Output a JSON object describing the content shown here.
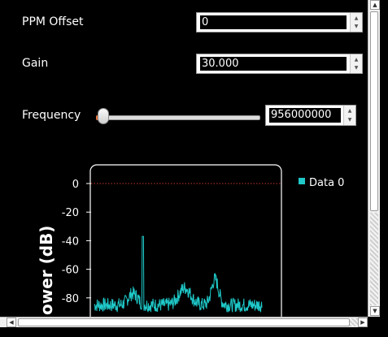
{
  "controls": {
    "ppm": {
      "label": "PPM Offset",
      "value": "0"
    },
    "gain": {
      "label": "Gain",
      "value": "30.000"
    },
    "frequency": {
      "label": "Frequency",
      "value": "956000000",
      "slider_position": 0.02
    }
  },
  "chart_data": {
    "type": "line",
    "title": "",
    "xlabel": "",
    "ylabel": "ower (dB)",
    "yticks": [
      0,
      -20,
      -40,
      -60,
      -80
    ],
    "ylim": [
      -92,
      10
    ],
    "reference_line": 0,
    "series": [
      {
        "name": "Data 0",
        "color": "#1fc9c9",
        "noise_floor_db": -85,
        "peaks": [
          {
            "x": 0.29,
            "y": -37
          },
          {
            "x": 0.54,
            "y": -73
          },
          {
            "x": 0.72,
            "y": -63
          }
        ]
      }
    ],
    "legend": "top-right",
    "grid": false
  },
  "colors": {
    "accent": "#e8743b",
    "series": "#1fc9c9",
    "reference": "#c0392b"
  },
  "icons": [
    "spin-up-icon",
    "spin-down-icon",
    "scroll-up-icon",
    "scroll-down-icon",
    "scroll-left-icon",
    "scroll-right-icon"
  ]
}
